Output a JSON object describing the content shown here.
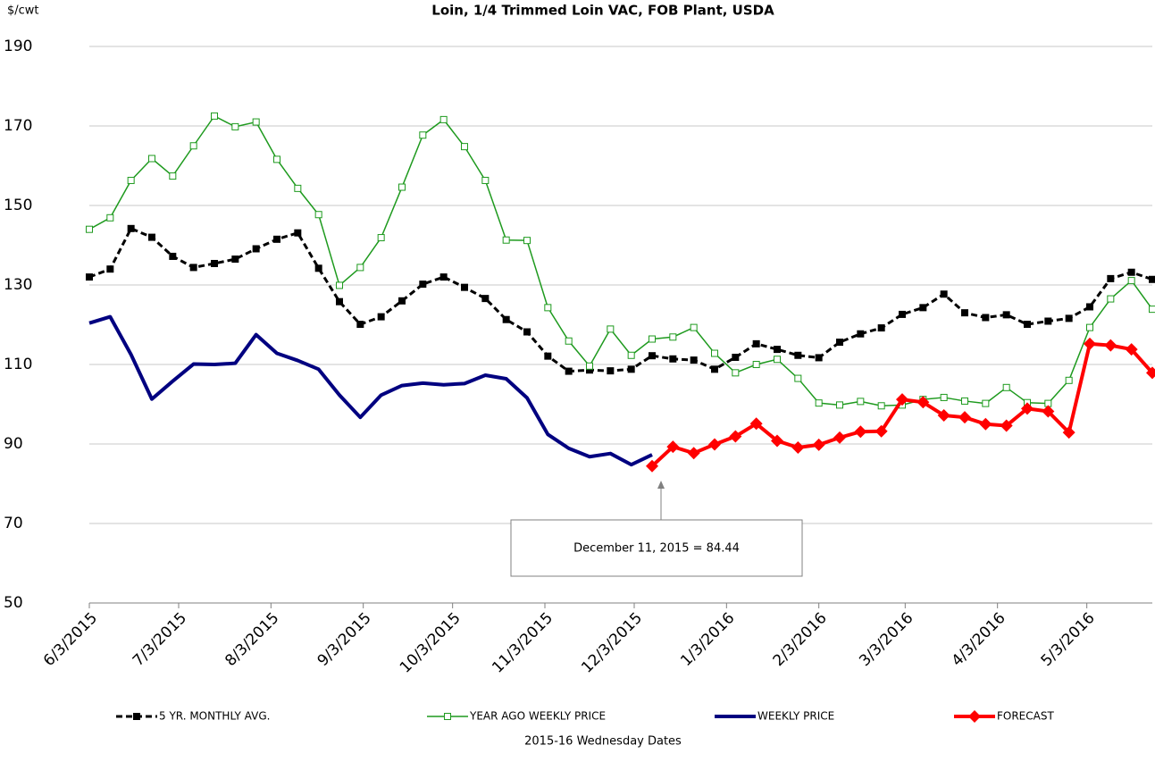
{
  "chart_data": {
    "type": "line",
    "title": "Loin, 1/4 Trimmed Loin VAC, FOB Plant, USDA",
    "y_label": "$/cwt",
    "x_label": "2015-16 Wednesday Dates",
    "annotation": "December 11, 2015  = 84.44",
    "x": [
      "2015-06-03",
      "2015-06-10",
      "2015-06-17",
      "2015-06-24",
      "2015-07-01",
      "2015-07-08",
      "2015-07-15",
      "2015-07-22",
      "2015-07-29",
      "2015-08-05",
      "2015-08-12",
      "2015-08-19",
      "2015-08-26",
      "2015-09-02",
      "2015-09-09",
      "2015-09-16",
      "2015-09-23",
      "2015-09-30",
      "2015-10-07",
      "2015-10-14",
      "2015-10-21",
      "2015-10-28",
      "2015-11-04",
      "2015-11-11",
      "2015-11-18",
      "2015-11-25",
      "2015-12-02",
      "2015-12-09",
      "2015-12-16",
      "2015-12-23",
      "2015-12-30",
      "2016-01-06",
      "2016-01-13",
      "2016-01-20",
      "2016-01-27",
      "2016-02-03",
      "2016-02-10",
      "2016-02-17",
      "2016-02-24",
      "2016-03-02",
      "2016-03-09",
      "2016-03-16",
      "2016-03-23",
      "2016-03-30",
      "2016-04-06",
      "2016-04-13",
      "2016-04-20",
      "2016-04-27",
      "2016-05-04",
      "2016-05-11",
      "2016-05-18",
      "2016-05-25"
    ],
    "xlim": [
      "2015-06-03",
      "2016-05-25"
    ],
    "xticks": [
      {
        "value": "2015-06-03",
        "label": "6/3/2015"
      },
      {
        "value": "2015-07-03",
        "label": "7/3/2015"
      },
      {
        "value": "2015-08-03",
        "label": "8/3/2015"
      },
      {
        "value": "2015-09-03",
        "label": "9/3/2015"
      },
      {
        "value": "2015-10-03",
        "label": "10/3/2015"
      },
      {
        "value": "2015-11-03",
        "label": "11/3/2015"
      },
      {
        "value": "2015-12-03",
        "label": "12/3/2015"
      },
      {
        "value": "2016-01-03",
        "label": "1/3/2016"
      },
      {
        "value": "2016-02-03",
        "label": "2/3/2016"
      },
      {
        "value": "2016-03-03",
        "label": "3/3/2016"
      },
      {
        "value": "2016-04-03",
        "label": "4/3/2016"
      },
      {
        "value": "2016-05-03",
        "label": "5/3/2016"
      }
    ],
    "ylim": [
      50,
      190
    ],
    "yticks": [
      50,
      70,
      90,
      110,
      130,
      150,
      170,
      190
    ],
    "grid": true,
    "legend": "bottom",
    "series": [
      {
        "name": "5 YR. MONTHLY AVG.",
        "color": "#000000",
        "line_style": "dashed",
        "marker": "square",
        "values": [
          132.0,
          134.0,
          144.2,
          142.0,
          137.2,
          134.4,
          135.4,
          136.5,
          139.1,
          141.5,
          143.1,
          134.2,
          125.8,
          120.1,
          122.0,
          126.0,
          130.2,
          132.0,
          129.4,
          126.6,
          121.3,
          118.2,
          112.1,
          108.3,
          108.6,
          108.4,
          108.8,
          112.2,
          111.4,
          111.1,
          108.8,
          111.8,
          115.2,
          113.8,
          112.3,
          111.7,
          115.6,
          117.7,
          119.2,
          122.6,
          124.3,
          127.7,
          123.0,
          121.8,
          122.5,
          120.1,
          120.9,
          121.6,
          124.5,
          131.6,
          133.2,
          131.4
        ]
      },
      {
        "name": "YEAR AGO WEEKLY PRICE",
        "color": "#1e9a1e",
        "line_style": "solid",
        "marker": "hollow-square",
        "values": [
          144.0,
          146.9,
          156.3,
          161.8,
          157.4,
          165.0,
          172.5,
          169.8,
          171.0,
          161.6,
          154.3,
          147.7,
          129.9,
          134.4,
          141.9,
          154.6,
          167.7,
          171.6,
          164.8,
          156.3,
          141.3,
          141.2,
          124.3,
          115.9,
          109.6,
          118.9,
          112.3,
          116.4,
          116.9,
          119.3,
          112.8,
          107.9,
          110.0,
          111.3,
          106.5,
          100.3,
          99.8,
          100.7,
          99.6,
          99.8,
          101.2,
          101.7,
          100.8,
          100.2,
          104.2,
          100.4,
          100.2,
          106.0,
          119.3,
          126.5,
          131.1,
          123.9
        ]
      },
      {
        "name": "WEEKLY PRICE",
        "color": "#000080",
        "line_style": "solid",
        "marker": "none",
        "values": [
          120.4,
          122.0,
          112.5,
          101.3,
          105.8,
          110.1,
          110.0,
          110.3,
          117.5,
          112.8,
          111.0,
          108.8,
          102.3,
          96.7,
          102.3,
          104.7,
          105.3,
          104.9,
          105.2,
          107.3,
          106.4,
          101.6,
          92.4,
          88.9,
          86.8,
          87.6,
          84.8,
          87.3,
          null,
          null,
          null,
          null,
          null,
          null,
          null,
          null,
          null,
          null,
          null,
          null,
          null,
          null,
          null,
          null,
          null,
          null,
          null,
          null,
          null,
          null,
          null,
          null
        ]
      },
      {
        "name": "FORECAST",
        "color": "#ff0000",
        "line_style": "solid",
        "marker": "diamond",
        "values": [
          null,
          null,
          null,
          null,
          null,
          null,
          null,
          null,
          null,
          null,
          null,
          null,
          null,
          null,
          null,
          null,
          null,
          null,
          null,
          null,
          null,
          null,
          null,
          null,
          null,
          null,
          null,
          84.44,
          89.3,
          87.7,
          89.9,
          91.9,
          95.1,
          90.8,
          89.1,
          89.8,
          91.6,
          93.1,
          93.2,
          101.2,
          100.5,
          97.2,
          96.7,
          95.0,
          94.6,
          98.9,
          98.2,
          92.9,
          115.2,
          114.8,
          113.8,
          107.9
        ]
      }
    ]
  }
}
